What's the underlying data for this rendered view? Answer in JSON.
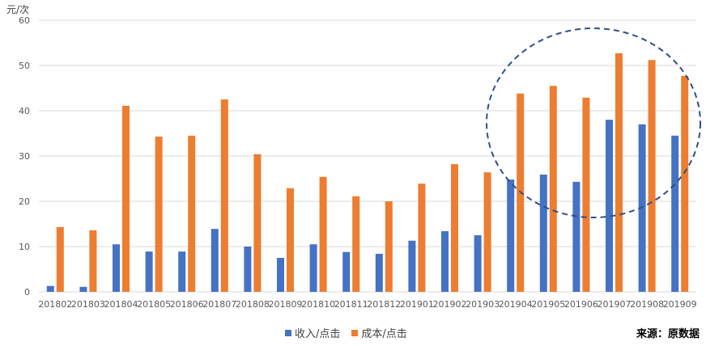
{
  "chart_data": {
    "type": "bar",
    "title": "",
    "xlabel": "",
    "ylabel": "元/次",
    "ylim": [
      0,
      60
    ],
    "yticks": [
      0,
      10,
      20,
      30,
      40,
      50,
      60
    ],
    "grid": true,
    "legend_position": "bottom",
    "categories": [
      "201802",
      "201803",
      "201804",
      "201805",
      "201806",
      "201807",
      "201808",
      "201809",
      "201810",
      "201811",
      "201812",
      "201901",
      "201902",
      "201903",
      "201904",
      "201905",
      "201906",
      "201907",
      "201908",
      "201909"
    ],
    "series": [
      {
        "name": "收入/点击",
        "color": "#4472c4",
        "values": [
          1.3,
          1.1,
          10.5,
          8.9,
          8.9,
          13.9,
          10.0,
          7.5,
          10.5,
          8.8,
          8.4,
          11.3,
          13.4,
          12.5,
          24.8,
          25.9,
          24.3,
          38.0,
          37.0,
          34.5
        ]
      },
      {
        "name": "成本/点击",
        "color": "#ed7d31",
        "values": [
          14.3,
          13.6,
          41.1,
          34.3,
          34.5,
          42.5,
          30.4,
          22.9,
          25.4,
          21.1,
          20.0,
          23.9,
          28.2,
          26.4,
          43.8,
          45.5,
          42.9,
          52.7,
          51.2,
          47.7
        ]
      }
    ],
    "annotations": [
      {
        "type": "dashed-ellipse",
        "highlights": [
          "201904",
          "201905",
          "201906",
          "201907",
          "201908",
          "201909"
        ],
        "color": "#2f4f8a"
      }
    ]
  },
  "source": "来源：原数据"
}
